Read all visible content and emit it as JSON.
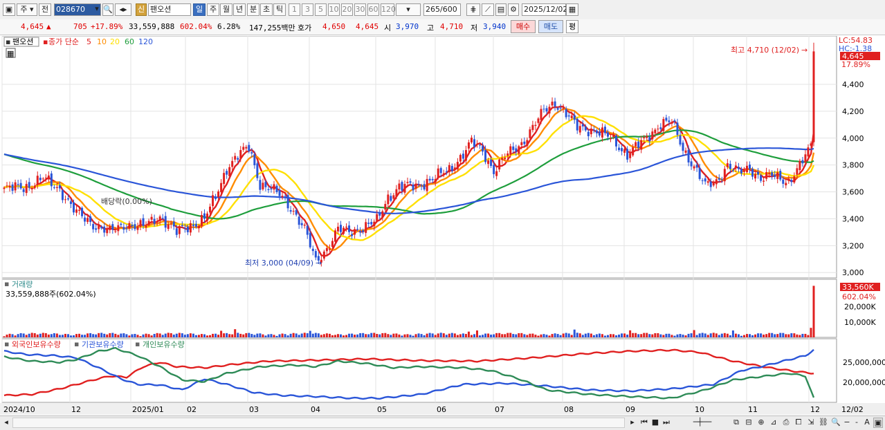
{
  "toolbar": {
    "period_label": "주",
    "prev_label": "전",
    "code_value": "028670",
    "credit_badge": "신",
    "stock_name": "팬오션",
    "periods": [
      "일",
      "주",
      "월",
      "년",
      "분",
      "초",
      "틱"
    ],
    "active_period": "일",
    "minute_options": [
      "1",
      "3",
      "5",
      "10",
      "20",
      "30",
      "60",
      "120"
    ],
    "count_value": "265",
    "count_total": "/600",
    "date_value": "2025/12/02"
  },
  "quote": {
    "price": "4,645",
    "change": "705",
    "change_pct": "+17.89%",
    "volume": "33,559,888",
    "volume_pct": "602.04%",
    "turnover_pct": "6.28%",
    "amount": "147,255백만",
    "hoga_label": "호가",
    "ask": "4,650",
    "bid": "4,645",
    "open_label": "시",
    "open": "3,970",
    "high_label": "고",
    "high": "4,710",
    "low_label": "저",
    "low": "3,940",
    "buy_label": "매수",
    "sell_label": "매도",
    "avg_label": "평"
  },
  "price_panel": {
    "legend_name": "팬오션",
    "legend_ma_title": "종가 단순",
    "ma_periods": [
      "5",
      "10",
      "20",
      "60",
      "120"
    ],
    "ma_colors": [
      "#e02020",
      "#ff8c00",
      "#ffe000",
      "#1e9e3c",
      "#2a55d8"
    ],
    "lc_label": "LC:54.83",
    "hc_label": "HC:-1.38",
    "last_price_tag": "4,645",
    "last_pct_tag": "17.89%",
    "high_annotation": "최고 4,710 (12/02)",
    "low_annotation": "최저 3,000 (04/09)",
    "dividend_annotation": "배당락(0.00%)",
    "y_ticks": [
      "4,400",
      "4,200",
      "4,000",
      "3,800",
      "3,600",
      "3,400",
      "3,200",
      "3,000"
    ],
    "y_tick_values": [
      4400,
      4200,
      4000,
      3800,
      3600,
      3400,
      3200,
      3000
    ]
  },
  "volume_panel": {
    "title": "거래량",
    "value_text": "33,559,888주(602.04%)",
    "last_tag": "33,560K",
    "last_pct": "602.04%",
    "y_ticks": [
      "20,000K",
      "10,000K"
    ],
    "y_tick_values": [
      20000,
      10000
    ]
  },
  "holdings_panel": {
    "series_names": [
      "외국인보유수량",
      "기관보유수량",
      "개인보유수량"
    ],
    "series_colors": [
      "#e02020",
      "#2a55d8",
      "#2e8b57"
    ],
    "y_ticks": [
      "25,000,000",
      "20,000,000"
    ]
  },
  "x_axis": {
    "labels": [
      "2024/10",
      "12",
      "2025/01",
      "02",
      "03",
      "04",
      "05",
      "06",
      "07",
      "08",
      "09",
      "10",
      "11",
      "12",
      "12/02"
    ]
  },
  "chart_data": {
    "type": "candlestick",
    "price_range": [
      2960,
      4760
    ],
    "price_anchors": [
      [
        0,
        3620
      ],
      [
        8,
        3640
      ],
      [
        14,
        3700
      ],
      [
        20,
        3620
      ],
      [
        26,
        3440
      ],
      [
        32,
        3360
      ],
      [
        38,
        3300
      ],
      [
        44,
        3360
      ],
      [
        50,
        3340
      ],
      [
        56,
        3420
      ],
      [
        62,
        3300
      ],
      [
        66,
        3340
      ],
      [
        72,
        3400
      ],
      [
        76,
        3560
      ],
      [
        80,
        3780
      ],
      [
        84,
        3870
      ],
      [
        88,
        3930
      ],
      [
        92,
        3660
      ],
      [
        96,
        3620
      ],
      [
        100,
        3560
      ],
      [
        104,
        3460
      ],
      [
        108,
        3320
      ],
      [
        112,
        3080
      ],
      [
        116,
        3180
      ],
      [
        120,
        3320
      ],
      [
        124,
        3300
      ],
      [
        128,
        3330
      ],
      [
        134,
        3380
      ],
      [
        138,
        3560
      ],
      [
        142,
        3640
      ],
      [
        148,
        3640
      ],
      [
        154,
        3700
      ],
      [
        160,
        3760
      ],
      [
        164,
        3860
      ],
      [
        168,
        3970
      ],
      [
        172,
        3900
      ],
      [
        176,
        3760
      ],
      [
        180,
        3860
      ],
      [
        186,
        3960
      ],
      [
        190,
        4080
      ],
      [
        194,
        4200
      ],
      [
        198,
        4270
      ],
      [
        202,
        4180
      ],
      [
        206,
        4080
      ],
      [
        212,
        4060
      ],
      [
        218,
        4000
      ],
      [
        224,
        3880
      ],
      [
        230,
        3980
      ],
      [
        236,
        4110
      ],
      [
        240,
        4120
      ],
      [
        244,
        3920
      ],
      [
        248,
        3790
      ],
      [
        252,
        3640
      ],
      [
        256,
        3680
      ],
      [
        260,
        3800
      ],
      [
        264,
        3740
      ],
      [
        268,
        3780
      ],
      [
        272,
        3700
      ],
      [
        276,
        3720
      ],
      [
        282,
        3680
      ],
      [
        286,
        3790
      ],
      [
        290,
        3940
      ],
      [
        291,
        4645
      ]
    ],
    "volume_range_k": [
      0,
      36000
    ],
    "volume_last_k": 33560,
    "holdings_series": [
      {
        "name": "외국인보유수량",
        "color": "#e02020",
        "points": [
          [
            0,
            0.1
          ],
          [
            10,
            0.12
          ],
          [
            20,
            0.22
          ],
          [
            26,
            0.3
          ],
          [
            32,
            0.38
          ],
          [
            38,
            0.45
          ],
          [
            44,
            0.43
          ],
          [
            50,
            0.62
          ],
          [
            56,
            0.7
          ],
          [
            62,
            0.62
          ],
          [
            72,
            0.6
          ],
          [
            82,
            0.66
          ],
          [
            95,
            0.72
          ],
          [
            105,
            0.73
          ],
          [
            115,
            0.74
          ],
          [
            130,
            0.76
          ],
          [
            150,
            0.73
          ],
          [
            170,
            0.72
          ],
          [
            190,
            0.78
          ],
          [
            210,
            0.86
          ],
          [
            225,
            0.9
          ],
          [
            240,
            0.92
          ],
          [
            250,
            0.88
          ],
          [
            262,
            0.72
          ],
          [
            275,
            0.6
          ],
          [
            285,
            0.53
          ],
          [
            291,
            0.5
          ]
        ]
      },
      {
        "name": "기관보유수량",
        "color": "#2a55d8",
        "points": [
          [
            0,
            0.9
          ],
          [
            8,
            0.84
          ],
          [
            18,
            0.82
          ],
          [
            26,
            0.78
          ],
          [
            34,
            0.6
          ],
          [
            42,
            0.4
          ],
          [
            48,
            0.3
          ],
          [
            56,
            0.29
          ],
          [
            64,
            0.2
          ],
          [
            72,
            0.4
          ],
          [
            80,
            0.3
          ],
          [
            90,
            0.15
          ],
          [
            100,
            0.1
          ],
          [
            112,
            0.08
          ],
          [
            125,
            0.05
          ],
          [
            135,
            0.05
          ],
          [
            150,
            0.12
          ],
          [
            165,
            0.3
          ],
          [
            180,
            0.32
          ],
          [
            195,
            0.27
          ],
          [
            210,
            0.2
          ],
          [
            225,
            0.18
          ],
          [
            240,
            0.22
          ],
          [
            255,
            0.3
          ],
          [
            265,
            0.55
          ],
          [
            272,
            0.62
          ],
          [
            280,
            0.72
          ],
          [
            288,
            0.82
          ],
          [
            291,
            0.92
          ]
        ]
      },
      {
        "name": "개인보유수량",
        "color": "#2e8b57",
        "points": [
          [
            0,
            0.8
          ],
          [
            10,
            0.72
          ],
          [
            20,
            0.7
          ],
          [
            26,
            0.75
          ],
          [
            34,
            0.9
          ],
          [
            40,
            0.95
          ],
          [
            48,
            0.82
          ],
          [
            56,
            0.62
          ],
          [
            64,
            0.38
          ],
          [
            72,
            0.35
          ],
          [
            80,
            0.5
          ],
          [
            92,
            0.62
          ],
          [
            104,
            0.65
          ],
          [
            112,
            0.62
          ],
          [
            120,
            0.72
          ],
          [
            130,
            0.68
          ],
          [
            140,
            0.6
          ],
          [
            150,
            0.62
          ],
          [
            165,
            0.6
          ],
          [
            175,
            0.55
          ],
          [
            185,
            0.4
          ],
          [
            195,
            0.2
          ],
          [
            210,
            0.12
          ],
          [
            225,
            0.08
          ],
          [
            240,
            0.05
          ],
          [
            252,
            0.2
          ],
          [
            262,
            0.38
          ],
          [
            272,
            0.44
          ],
          [
            282,
            0.5
          ],
          [
            288,
            0.45
          ],
          [
            291,
            0.05
          ]
        ]
      }
    ]
  }
}
